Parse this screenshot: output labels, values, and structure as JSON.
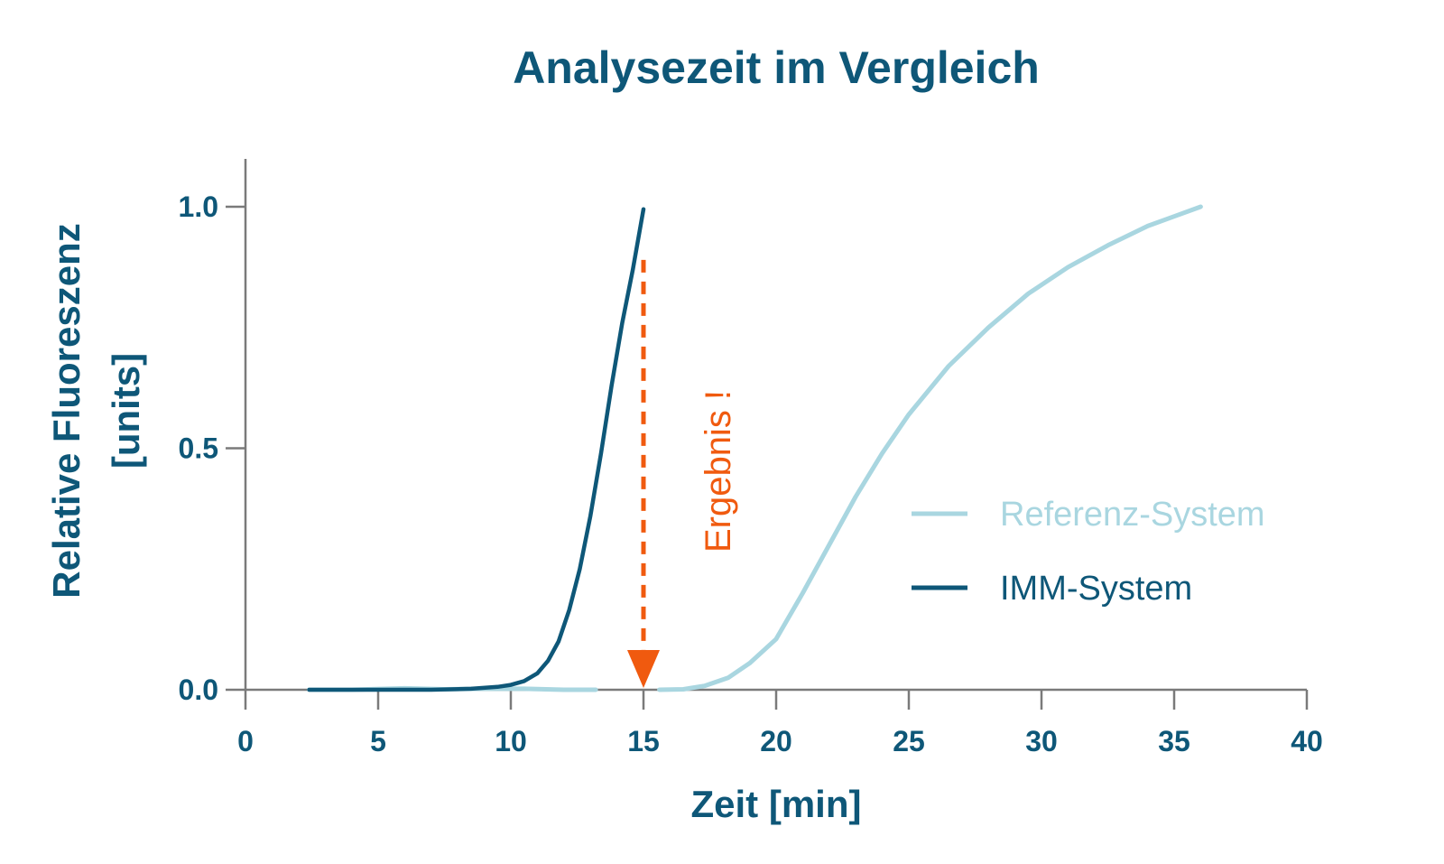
{
  "chart_data": {
    "type": "line",
    "title": "Analysezeit im Vergleich",
    "xlabel": "Zeit [min]",
    "ylabel_lines": [
      "Relative Fluoreszenz",
      "[units]"
    ],
    "xlim": [
      0,
      40
    ],
    "ylim": [
      0,
      1.0
    ],
    "x_ticks": [
      0,
      5,
      10,
      15,
      20,
      25,
      30,
      35,
      40
    ],
    "x_tick_labels": [
      "0",
      "5",
      "10",
      "15",
      "20",
      "25",
      "30",
      "35",
      "40"
    ],
    "y_ticks": [
      0,
      0.5,
      1.0
    ],
    "y_tick_labels": [
      "0.0",
      "0.5",
      "1.0"
    ],
    "grid": false,
    "legend_position": "right",
    "series": [
      {
        "name": "Referenz-System",
        "color": "#a9d6e0",
        "segments": [
          {
            "x": [
              2.4,
              4,
              6,
              7.5,
              9,
              10.5,
              12,
              13.2
            ],
            "y": [
              0,
              0,
              0.003,
              0.001,
              0.002,
              0.002,
              0,
              0
            ]
          },
          {
            "x": [
              15.6,
              16.5,
              17.3,
              18.2,
              19,
              20,
              21,
              22,
              23,
              24,
              25,
              26.5,
              28,
              29.5,
              31,
              32.5,
              34,
              35,
              36
            ],
            "y": [
              0,
              0.001,
              0.008,
              0.025,
              0.055,
              0.105,
              0.2,
              0.3,
              0.4,
              0.49,
              0.57,
              0.67,
              0.75,
              0.82,
              0.875,
              0.92,
              0.96,
              0.98,
              1.0
            ]
          }
        ]
      },
      {
        "name": "IMM-System",
        "color": "#0e5778",
        "segments": [
          {
            "x": [
              2.4,
              5,
              7,
              8.5,
              9.5,
              10,
              10.5,
              11,
              11.4,
              11.8,
              12.2,
              12.6,
              13,
              13.4,
              13.8,
              14.2,
              14.6,
              15
            ],
            "y": [
              0,
              0,
              0,
              0.002,
              0.006,
              0.01,
              0.018,
              0.034,
              0.06,
              0.1,
              0.165,
              0.25,
              0.36,
              0.49,
              0.63,
              0.76,
              0.87,
              0.995
            ]
          }
        ]
      }
    ],
    "annotation": {
      "text": "Ergebnis !",
      "x": 15,
      "y_start": 0.89,
      "y_end": 0,
      "color": "#f05a0f"
    },
    "colors": {
      "title": "#0e5778",
      "axis": "#7a7a7a",
      "labels": "#0e5778"
    }
  }
}
